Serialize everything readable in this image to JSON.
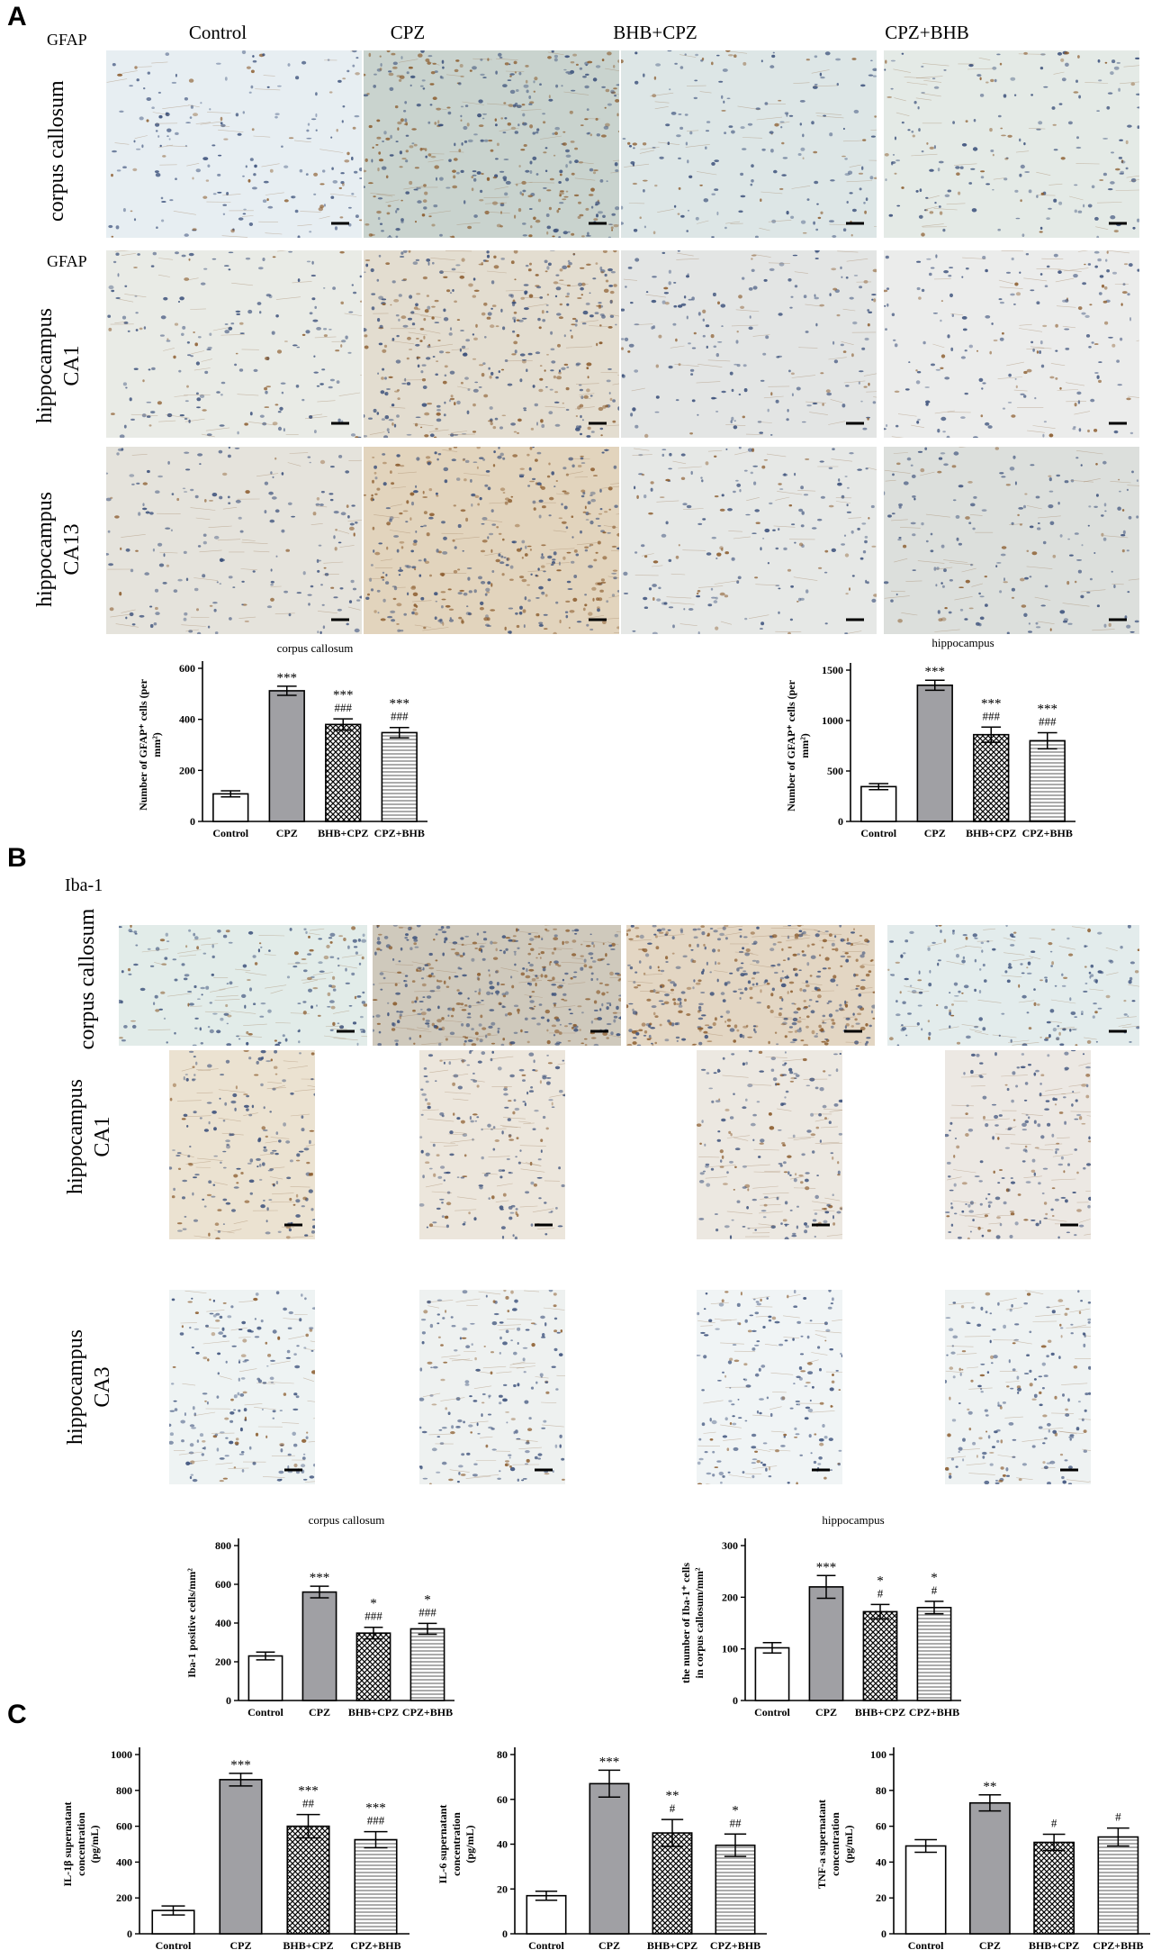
{
  "panels": {
    "A": {
      "letter": "A",
      "column_labels": [
        "Control",
        "CPZ",
        "BHB+CPZ",
        "CPZ+BHB"
      ],
      "marker": "GFAP",
      "rows": [
        {
          "label_lines": [
            "corpus callosum"
          ],
          "marker": "GFAP"
        },
        {
          "label_lines": [
            "hippocampus",
            "CA1"
          ],
          "marker": "GFAP"
        },
        {
          "label_lines": [
            "hippocampus",
            "CA13"
          ],
          "marker": ""
        }
      ]
    },
    "B": {
      "letter": "B",
      "marker": "Iba-1",
      "rows": [
        {
          "label_lines": [
            "corpus callosum"
          ]
        },
        {
          "label_lines": [
            "hippocampus",
            "CA1"
          ]
        },
        {
          "label_lines": [
            "hippocampus",
            "CA3"
          ]
        }
      ]
    },
    "C": {
      "letter": "C"
    }
  },
  "image_tints": {
    "A": [
      [
        "#e7eef2",
        "#c9d3ce",
        "#dde6e6",
        "#e4eae6"
      ],
      [
        "#e9ebe6",
        "#e3ddd0",
        "#e3e5e4",
        "#ebeceb"
      ],
      [
        "#e5e3dc",
        "#e2d4bd",
        "#e6e8e6",
        "#dcdfdc"
      ]
    ],
    "B": [
      [
        "#e2ece9",
        "#cfc9bc",
        "#e3d6c3",
        "#e3ecec"
      ],
      [
        "#ebe2d1",
        "#ece6dc",
        "#ece8e1",
        "#ece8e3"
      ],
      [
        "#eef3f3",
        "#eef1f0",
        "#f0f4f5",
        "#eef2f2"
      ]
    ]
  },
  "chart_data": [
    {
      "type": "bar",
      "title": "corpus callosum",
      "ylabel": "Number of GFAP⁺ cells (per mm²)",
      "categories": [
        "Control",
        "CPZ",
        "BHB+CPZ",
        "CPZ+BHB"
      ],
      "values": [
        108,
        512,
        380,
        348
      ],
      "errors": [
        12,
        18,
        22,
        20
      ],
      "ylim": [
        0,
        600
      ],
      "yticks": [
        0,
        200,
        400,
        600
      ],
      "annotations": [
        [
          "",
          ""
        ],
        [
          "***",
          ""
        ],
        [
          "***",
          "###"
        ],
        [
          "***",
          "###"
        ]
      ]
    },
    {
      "type": "bar",
      "title": "hippocampus",
      "ylabel": "Number of GFAP⁺ cells (per mm²)",
      "categories": [
        "Control",
        "CPZ",
        "BHB+CPZ",
        "CPZ+BHB"
      ],
      "values": [
        345,
        1350,
        860,
        800
      ],
      "errors": [
        30,
        50,
        75,
        80
      ],
      "ylim": [
        0,
        1500
      ],
      "yticks": [
        0,
        500,
        1000,
        1500
      ],
      "annotations": [
        [
          "",
          ""
        ],
        [
          "***",
          ""
        ],
        [
          "***",
          "###"
        ],
        [
          "***",
          "###"
        ]
      ]
    },
    {
      "type": "bar",
      "title": "corpus callosum",
      "ylabel": "Iba-1 positive cells/mm²",
      "categories": [
        "Control",
        "CPZ",
        "BHB+CPZ",
        "CPZ+BHB"
      ],
      "values": [
        230,
        560,
        348,
        370
      ],
      "errors": [
        20,
        30,
        30,
        28
      ],
      "ylim": [
        0,
        800
      ],
      "yticks": [
        0,
        200,
        400,
        600,
        800
      ],
      "annotations": [
        [
          "",
          ""
        ],
        [
          "***",
          ""
        ],
        [
          "*",
          "###"
        ],
        [
          "*",
          "###"
        ]
      ]
    },
    {
      "type": "bar",
      "title": "hippocampus",
      "ylabel": "the number of Iba-1⁺ cells in corpus callosum/mm²",
      "categories": [
        "Control",
        "CPZ",
        "BHB+CPZ",
        "CPZ+BHB"
      ],
      "values": [
        102,
        220,
        172,
        180
      ],
      "errors": [
        10,
        22,
        14,
        12
      ],
      "ylim": [
        0,
        300
      ],
      "yticks": [
        0,
        100,
        200,
        300
      ],
      "annotations": [
        [
          "",
          ""
        ],
        [
          "***",
          ""
        ],
        [
          "*",
          "#"
        ],
        [
          "*",
          "#"
        ]
      ]
    },
    {
      "type": "bar",
      "title": "",
      "ylabel": "IL-1β supernatant concentration (pg/mL)",
      "categories": [
        "Control",
        "CPZ",
        "BHB+CPZ",
        "CPZ+BHB"
      ],
      "values": [
        130,
        860,
        600,
        525
      ],
      "errors": [
        25,
        35,
        65,
        45
      ],
      "ylim": [
        0,
        1000
      ],
      "yticks": [
        0,
        200,
        400,
        600,
        800,
        1000
      ],
      "annotations": [
        [
          "",
          ""
        ],
        [
          "***",
          ""
        ],
        [
          "***",
          "##"
        ],
        [
          "***",
          "###"
        ]
      ]
    },
    {
      "type": "bar",
      "title": "",
      "ylabel": "IL-6 supernatant concentration (pg/mL)",
      "categories": [
        "Control",
        "CPZ",
        "BHB+CPZ",
        "CPZ+BHB"
      ],
      "values": [
        17,
        67,
        45,
        39.5
      ],
      "errors": [
        2,
        6,
        6,
        5
      ],
      "ylim": [
        0,
        80
      ],
      "yticks": [
        0,
        20,
        40,
        60,
        80
      ],
      "annotations": [
        [
          "",
          ""
        ],
        [
          "***",
          ""
        ],
        [
          "**",
          "#"
        ],
        [
          "*",
          "##"
        ]
      ]
    },
    {
      "type": "bar",
      "title": "",
      "ylabel": "TNF-a supernatant concentration (pg/mL)",
      "categories": [
        "Control",
        "CPZ",
        "BHB+CPZ",
        "CPZ+BHB"
      ],
      "values": [
        49,
        73,
        51,
        54
      ],
      "errors": [
        3.5,
        4.5,
        4.5,
        5
      ],
      "ylim": [
        0,
        100
      ],
      "yticks": [
        0,
        20,
        40,
        60,
        80,
        100
      ],
      "annotations": [
        [
          "",
          ""
        ],
        [
          "**",
          ""
        ],
        [
          "",
          "#"
        ],
        [
          "",
          "#"
        ]
      ]
    }
  ]
}
